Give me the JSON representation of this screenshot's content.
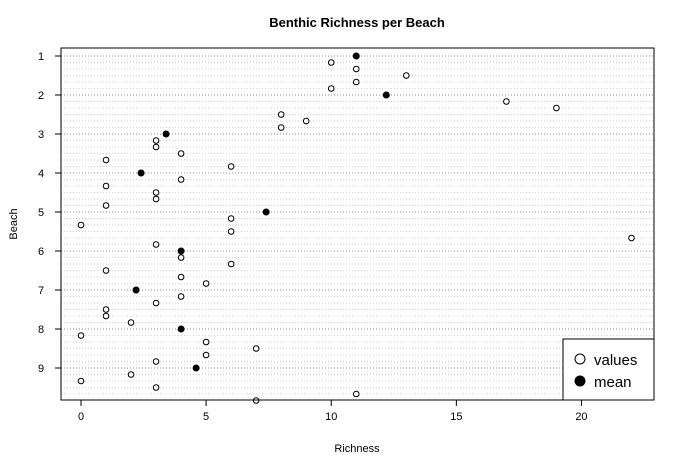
{
  "chart_data": {
    "type": "scatter",
    "title": "Benthic Richness per Beach",
    "xlabel": "Richness",
    "ylabel": "Beach",
    "xlim": [
      -0.8,
      22.9
    ],
    "x_ticks": [
      0,
      5,
      10,
      15,
      20
    ],
    "y_ticks": [
      1,
      2,
      3,
      4,
      5,
      6,
      7,
      8,
      9
    ],
    "grid": "horizontal dotted",
    "legend_position": "bottom-right",
    "legend": [
      {
        "label": "values",
        "marker": "open-circle"
      },
      {
        "label": "mean",
        "marker": "filled-circle"
      }
    ],
    "series": [
      {
        "name": "values",
        "points": [
          {
            "beach": 1,
            "values": [
              10,
              11,
              13,
              11,
              10
            ]
          },
          {
            "beach": 2,
            "values": [
              17,
              19,
              8,
              9,
              8
            ]
          },
          {
            "beach": 3,
            "values": [
              3,
              3,
              4,
              1,
              6
            ]
          },
          {
            "beach": 4,
            "values": [
              4,
              1,
              3,
              3,
              1
            ]
          },
          {
            "beach": 5,
            "values": [
              6,
              0,
              6,
              22,
              3
            ]
          },
          {
            "beach": 6,
            "values": [
              4,
              6,
              1,
              4,
              5
            ]
          },
          {
            "beach": 7,
            "values": [
              4,
              3,
              1,
              1,
              2
            ]
          },
          {
            "beach": 8,
            "values": [
              0,
              5,
              7,
              5,
              3
            ]
          },
          {
            "beach": 9,
            "values": [
              2,
              0,
              3,
              11,
              7
            ]
          }
        ]
      },
      {
        "name": "mean",
        "points": [
          {
            "beach": 1,
            "value": 11.0
          },
          {
            "beach": 2,
            "value": 12.2
          },
          {
            "beach": 3,
            "value": 3.4
          },
          {
            "beach": 4,
            "value": 2.4
          },
          {
            "beach": 5,
            "value": 7.4
          },
          {
            "beach": 6,
            "value": 4.0
          },
          {
            "beach": 7,
            "value": 2.2
          },
          {
            "beach": 8,
            "value": 4.0
          },
          {
            "beach": 9,
            "value": 4.6
          }
        ]
      }
    ]
  }
}
